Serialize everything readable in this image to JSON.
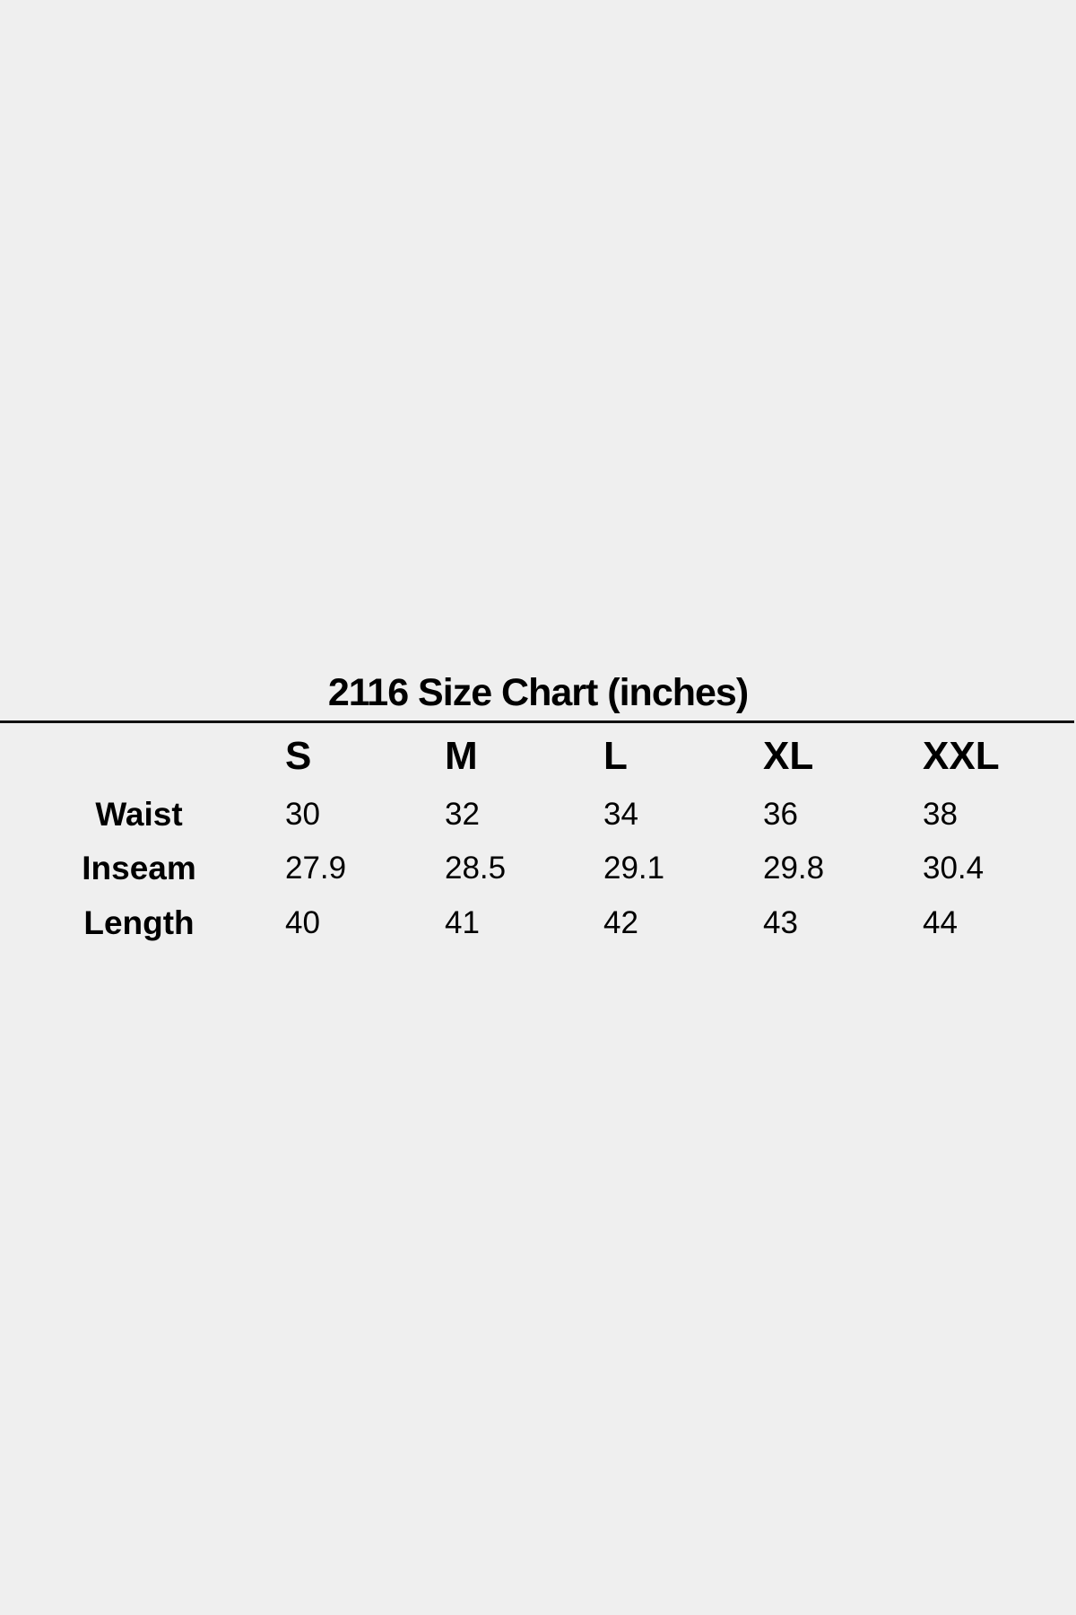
{
  "title": "2116 Size Chart (inches)",
  "table": {
    "columns": [
      "S",
      "M",
      "L",
      "XL",
      "XXL"
    ],
    "rows": [
      {
        "label": "Waist",
        "values": [
          "30",
          "32",
          "34",
          "36",
          "38"
        ]
      },
      {
        "label": "Inseam",
        "values": [
          "27.9",
          "28.5",
          "29.1",
          "29.8",
          "30.4"
        ]
      },
      {
        "label": "Length",
        "values": [
          "40",
          "41",
          "42",
          "43",
          "44"
        ]
      }
    ]
  }
}
